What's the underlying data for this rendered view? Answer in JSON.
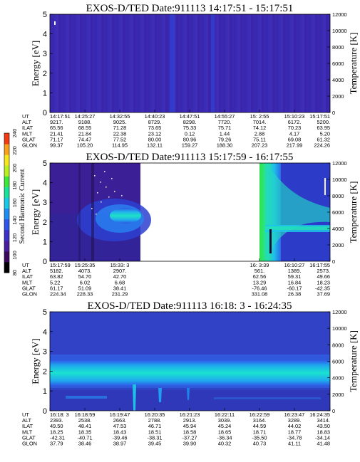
{
  "figure": {
    "instrument": "EXOS-D/TED",
    "y_label": "Energy [eV]",
    "y2_label": "Temperature [K]"
  },
  "colorbar": {
    "label": "Second Harmonic Current",
    "ticks": [
      "80",
      "100",
      "120",
      "140",
      "160",
      "180",
      "200",
      "220",
      "240"
    ],
    "colors": [
      "#000000",
      "#3b0a5c",
      "#4a1f9f",
      "#3b31c7",
      "#2f56e8",
      "#1f8ef2",
      "#19c9e6",
      "#19e39a",
      "#3ee83b",
      "#b8f020",
      "#f6e61e",
      "#f7a21a",
      "#f23b12"
    ]
  },
  "chart_data": [
    {
      "type": "heatmap",
      "title": "EXOS-D/TED   Date:911113   14:17:51 - 15:17:51",
      "ylabel": "Energy [eV]",
      "y2label": "Temperature [K]",
      "ylim": [
        0,
        5
      ],
      "y2lim": [
        0,
        12000
      ],
      "yticks": [
        "0",
        "1",
        "2",
        "3",
        "4",
        "5"
      ],
      "y2ticks": [
        "0",
        "2000",
        "4000",
        "6000",
        "8000",
        "10000",
        "12000"
      ],
      "x": [
        "14:17:51",
        "14:25:27",
        "14:32:55",
        "14:40:23",
        "14:47:51",
        "14:55:27",
        "15: 2:55",
        "15:10:23",
        "15:17:51"
      ],
      "rows": [
        {
          "label": "UT",
          "values": [
            "14:17:51",
            "14:25:27",
            "14:32:55",
            "14:40:23",
            "14:47:51",
            "14:55:27",
            "15: 2:55",
            "15:10:23",
            "15:17:51"
          ]
        },
        {
          "label": "ALT",
          "values": [
            "9217.",
            "9188.",
            "9025.",
            "8729.",
            "8298.",
            "7720.",
            "7014.",
            "6172.",
            "5200."
          ]
        },
        {
          "label": "ILAT",
          "values": [
            "65.56",
            "68.55",
            "71.28",
            "73.65",
            "75.33",
            "75.71",
            "74.12",
            "70.23",
            "63.95"
          ]
        },
        {
          "label": "MLT",
          "values": [
            "21.41",
            "21.84",
            "22.38",
            "23.12",
            "0.12",
            "1.44",
            "2.88",
            "4.17",
            "5.20"
          ]
        },
        {
          "label": "GLAT",
          "values": [
            "71.17",
            "74.47",
            "77.52",
            "80.00",
            "80.96",
            "79.26",
            "75.11",
            "69.08",
            "61.32"
          ]
        },
        {
          "label": "GLON",
          "values": [
            "99.37",
            "105.20",
            "114.95",
            "132.11",
            "159.27",
            "188.30",
            "207.23",
            "217.99",
            "224.26"
          ]
        }
      ]
    },
    {
      "type": "heatmap",
      "title": "EXOS-D/TED   Date:911113   15:17:59 - 16:17:55",
      "ylabel": "Energy [eV]",
      "y2label": "Temperature [K]",
      "ylim": [
        0,
        5
      ],
      "y2lim": [
        0,
        12000
      ],
      "yticks": [
        "0",
        "1",
        "2",
        "3",
        "4",
        "5"
      ],
      "y2ticks": [
        "0",
        "2000",
        "4000",
        "6000",
        "8000",
        "10000",
        "12000"
      ],
      "x": [
        "15:17:59",
        "15:25:35",
        "15:33: 3",
        "16: 3:39",
        "16:10:27",
        "16:17:55"
      ],
      "rows": [
        {
          "label": "UT",
          "values": [
            "15:17:59",
            "15:25:35",
            "15:33: 3",
            "16: 3:39",
            "16:10:27",
            "16:17:55"
          ]
        },
        {
          "label": "ALT",
          "values": [
            "5182.",
            "4073.",
            "2907.",
            "561.",
            "1389.",
            "2573."
          ]
        },
        {
          "label": "ILAT",
          "values": [
            "63.82",
            "54.70",
            "42.70",
            "62.56",
            "59.31",
            "49.66"
          ]
        },
        {
          "label": "MLT",
          "values": [
            "5.22",
            "6.02",
            "6.68",
            "13.29",
            "16.84",
            "18.23"
          ]
        },
        {
          "label": "GLAT",
          "values": [
            "61.17",
            "51.09",
            "38.41",
            "-76.46",
            "-60.17",
            "-42.35"
          ]
        },
        {
          "label": "GLON",
          "values": [
            "224.34",
            "228.33",
            "231.29",
            "331.08",
            "26.38",
            "37.69"
          ]
        }
      ]
    },
    {
      "type": "heatmap",
      "title": "EXOS-D/TED   Date:911113   16:18: 3 - 16:24:35",
      "ylabel": "Energy [eV]",
      "y2label": "Temperature [K]",
      "ylim": [
        0,
        5
      ],
      "y2lim": [
        0,
        12000
      ],
      "yticks": [
        "0",
        "1",
        "2",
        "3",
        "4",
        "5"
      ],
      "y2ticks": [
        "0",
        "2000",
        "4000",
        "6000",
        "8000",
        "10000",
        "12000"
      ],
      "x": [
        "16:18: 3",
        "16:18:59",
        "16:19:47",
        "16:20:35",
        "16:21:23",
        "16:22:11",
        "16:22:59",
        "16:23:47",
        "16:24:35"
      ],
      "rows": [
        {
          "label": "UT",
          "values": [
            "16:18: 3",
            "16:18:59",
            "16:19:47",
            "16:20:35",
            "16:21:23",
            "16:22:11",
            "16:22:59",
            "16:23:47",
            "16:24:35"
          ]
        },
        {
          "label": "ALT",
          "values": [
            "2393.",
            "2538.",
            "2663.",
            "2788.",
            "2913.",
            "3039.",
            "3164.",
            "3289.",
            "3414."
          ]
        },
        {
          "label": "ILAT",
          "values": [
            "49.50",
            "48.41",
            "47.53",
            "46.71",
            "45.94",
            "45.24",
            "44.59",
            "44.02",
            "43.50"
          ]
        },
        {
          "label": "MLT",
          "values": [
            "18.25",
            "18.35",
            "18.43",
            "18.51",
            "18.58",
            "18.65",
            "18.71",
            "18.77",
            "18.83"
          ]
        },
        {
          "label": "GLAT",
          "values": [
            "-42.31",
            "-40.71",
            "-39.46",
            "-38.31",
            "-37.27",
            "-36.34",
            "-35.50",
            "-34.78",
            "-34.14"
          ]
        },
        {
          "label": "GLON",
          "values": [
            "37.79",
            "38.46",
            "38.97",
            "39.45",
            "39.90",
            "40.32",
            "40.73",
            "41.11",
            "41.48"
          ]
        }
      ]
    }
  ]
}
